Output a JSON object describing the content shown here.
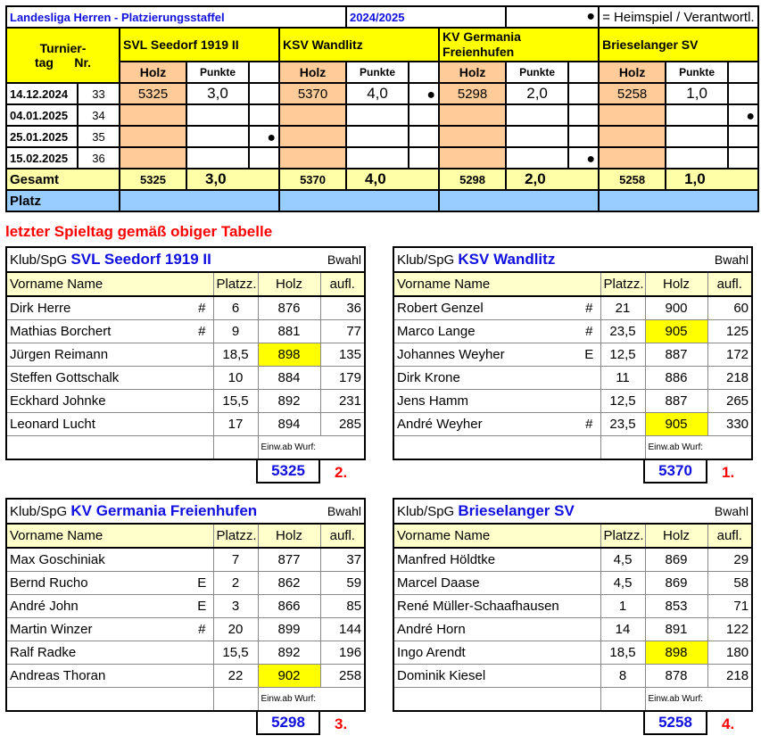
{
  "header": {
    "title": "Landesliga Herren - Platzierungsstaffel",
    "season": "2024/2025",
    "legend_dot": "●",
    "legend_text": "= Heimspiel / Verantwortl."
  },
  "labels": {
    "turniertag": "Turnier-",
    "tag": "tag",
    "nr": "Nr.",
    "holz": "Holz",
    "punkte": "Punkte",
    "gesamt": "Gesamt",
    "platz": "Platz"
  },
  "teams": [
    "SVL Seedorf 1919 II",
    "KSV Wandlitz",
    "KV Germania Freienhufen",
    "Brieselanger SV"
  ],
  "rounds": [
    {
      "date": "14.12.2024",
      "nr": "33",
      "cells": [
        [
          "5325",
          "3,0",
          ""
        ],
        [
          "5370",
          "4,0",
          "●"
        ],
        [
          "5298",
          "2,0",
          ""
        ],
        [
          "5258",
          "1,0",
          ""
        ]
      ]
    },
    {
      "date": "04.01.2025",
      "nr": "34",
      "cells": [
        [
          "",
          "",
          ""
        ],
        [
          "",
          "",
          ""
        ],
        [
          "",
          "",
          ""
        ],
        [
          "",
          "",
          "●"
        ]
      ]
    },
    {
      "date": "25.01.2025",
      "nr": "35",
      "cells": [
        [
          "",
          "",
          "●"
        ],
        [
          "",
          "",
          ""
        ],
        [
          "",
          "",
          ""
        ],
        [
          "",
          "",
          ""
        ]
      ]
    },
    {
      "date": "15.02.2025",
      "nr": "36",
      "cells": [
        [
          "",
          "",
          ""
        ],
        [
          "",
          "",
          ""
        ],
        [
          "",
          "",
          "●"
        ],
        [
          "",
          "",
          ""
        ]
      ]
    }
  ],
  "totals": [
    [
      "5325",
      "3,0"
    ],
    [
      "5370",
      "4,0"
    ],
    [
      "5298",
      "2,0"
    ],
    [
      "5258",
      "1,0"
    ]
  ],
  "note": "letzter Spieltag gemäß obiger Tabelle",
  "player_tables": [
    {
      "club_label": "Klub/SpG",
      "club": "SVL Seedorf 1919 II",
      "bwahl": "Bwahl",
      "cols": [
        "Vorname Name",
        "Platzz.",
        "Holz",
        "aufl."
      ],
      "einw": "Einw.ab Wurf:",
      "total": "5325",
      "place": "2.",
      "rows": [
        [
          "Dirk Herre",
          "#",
          "6",
          "876",
          "36",
          false
        ],
        [
          "Mathias Borchert",
          "#",
          "9",
          "881",
          "77",
          false
        ],
        [
          "Jürgen Reimann",
          "",
          "18,5",
          "898",
          "135",
          true
        ],
        [
          "Steffen Gottschalk",
          "",
          "10",
          "884",
          "179",
          false
        ],
        [
          "Eckhard Johnke",
          "",
          "15,5",
          "892",
          "231",
          false
        ],
        [
          "Leonard Lucht",
          "",
          "17",
          "894",
          "285",
          false
        ]
      ]
    },
    {
      "club_label": "Klub/SpG",
      "club": "KSV Wandlitz",
      "bwahl": "Bwahl",
      "cols": [
        "Vorname Name",
        "Platzz.",
        "Holz",
        "aufl."
      ],
      "einw": "Einw.ab Wurf:",
      "total": "5370",
      "place": "1.",
      "rows": [
        [
          "Robert Genzel",
          "#",
          "21",
          "900",
          "60",
          false
        ],
        [
          "Marco Lange",
          "#",
          "23,5",
          "905",
          "125",
          true
        ],
        [
          "Johannes Weyher",
          "E",
          "12,5",
          "887",
          "172",
          false
        ],
        [
          "Dirk Krone",
          "",
          "11",
          "886",
          "218",
          false
        ],
        [
          "Jens Hamm",
          "",
          "12,5",
          "887",
          "265",
          false
        ],
        [
          "André Weyher",
          "#",
          "23,5",
          "905",
          "330",
          true
        ]
      ]
    },
    {
      "club_label": "Klub/SpG",
      "club": "KV Germania Freienhufen",
      "bwahl": "Bwahl",
      "cols": [
        "Vorname Name",
        "Platzz.",
        "Holz",
        "aufl."
      ],
      "einw": "Einw.ab Wurf:",
      "total": "5298",
      "place": "3.",
      "rows": [
        [
          "Max Goschiniak",
          "",
          "7",
          "877",
          "37",
          false
        ],
        [
          "Bernd Rucho",
          "E",
          "2",
          "862",
          "59",
          false
        ],
        [
          "André John",
          "E",
          "3",
          "866",
          "85",
          false
        ],
        [
          "Martin Winzer",
          "#",
          "20",
          "899",
          "144",
          false
        ],
        [
          "Ralf Radke",
          "",
          "15,5",
          "892",
          "196",
          false
        ],
        [
          "Andreas Thoran",
          "",
          "22",
          "902",
          "258",
          true
        ]
      ]
    },
    {
      "club_label": "Klub/SpG",
      "club": "Brieselanger SV",
      "bwahl": "Bwahl",
      "cols": [
        "Vorname Name",
        "Platzz.",
        "Holz",
        "aufl."
      ],
      "einw": "Einw.ab Wurf:",
      "total": "5258",
      "place": "4.",
      "rows": [
        [
          "Manfred Höldtke",
          "",
          "4,5",
          "869",
          "29",
          false
        ],
        [
          "Marcel Daase",
          "",
          "4,5",
          "869",
          "58",
          false
        ],
        [
          "René Müller-Schaafhausen",
          "",
          "1",
          "853",
          "71",
          false
        ],
        [
          "André Horn",
          "",
          "14",
          "891",
          "122",
          false
        ],
        [
          "Ingo Arendt",
          "",
          "18,5",
          "898",
          "180",
          true
        ],
        [
          "Dominik Kiesel",
          "",
          "8",
          "878",
          "218",
          false
        ]
      ]
    }
  ],
  "colors": {
    "title_blue": "#1010e0",
    "highlight": "#ffff00",
    "holz_bg": "#ffcc99",
    "platz_bg": "#99ccff",
    "place_red": "#ff0000"
  }
}
